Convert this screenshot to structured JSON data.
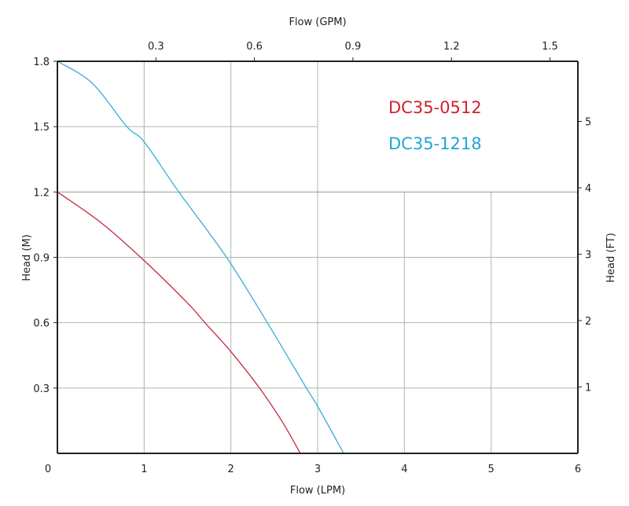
{
  "chart_data": {
    "type": "line",
    "title": "",
    "xlabel": "Flow (LPM)",
    "xlabel_top": "Flow (GPM)",
    "ylabel": "Head (M)",
    "ylabel_right": "Head (FT)",
    "xlim": [
      0,
      6
    ],
    "ylim": [
      0,
      1.8
    ],
    "x_ticks": [
      0,
      1,
      2,
      3,
      4,
      5,
      6
    ],
    "y_ticks": [
      "0.3",
      "0.6",
      "0.9",
      "1.2",
      "1.5",
      "1.8"
    ],
    "top_ticks": [
      "0.3",
      "0.6",
      "0.9",
      "1.2",
      "1.5"
    ],
    "right_ticks": [
      "1",
      "2",
      "3",
      "4",
      "5"
    ],
    "grid": true,
    "legend_placement": "top-right",
    "series": [
      {
        "name": "DC35-0512",
        "color": "#d0202e",
        "line_color": "#c8283c",
        "x": [
          0,
          0.5,
          1,
          1.5,
          1.7,
          2,
          2.33,
          2.6,
          2.8
        ],
        "y": [
          1.2,
          1.06,
          0.885,
          0.69,
          0.6,
          0.467,
          0.3,
          0.14,
          0
        ]
      },
      {
        "name": "DC35-1218",
        "color": "#1ea6d8",
        "line_color": "#3aaed6",
        "x": [
          0,
          0.4,
          0.8,
          1,
          1.4,
          1.95,
          2.42,
          2.87,
          3,
          3.3
        ],
        "y": [
          1.8,
          1.7,
          1.5,
          1.43,
          1.2,
          0.9,
          0.6,
          0.3,
          0.216,
          0
        ]
      }
    ]
  }
}
